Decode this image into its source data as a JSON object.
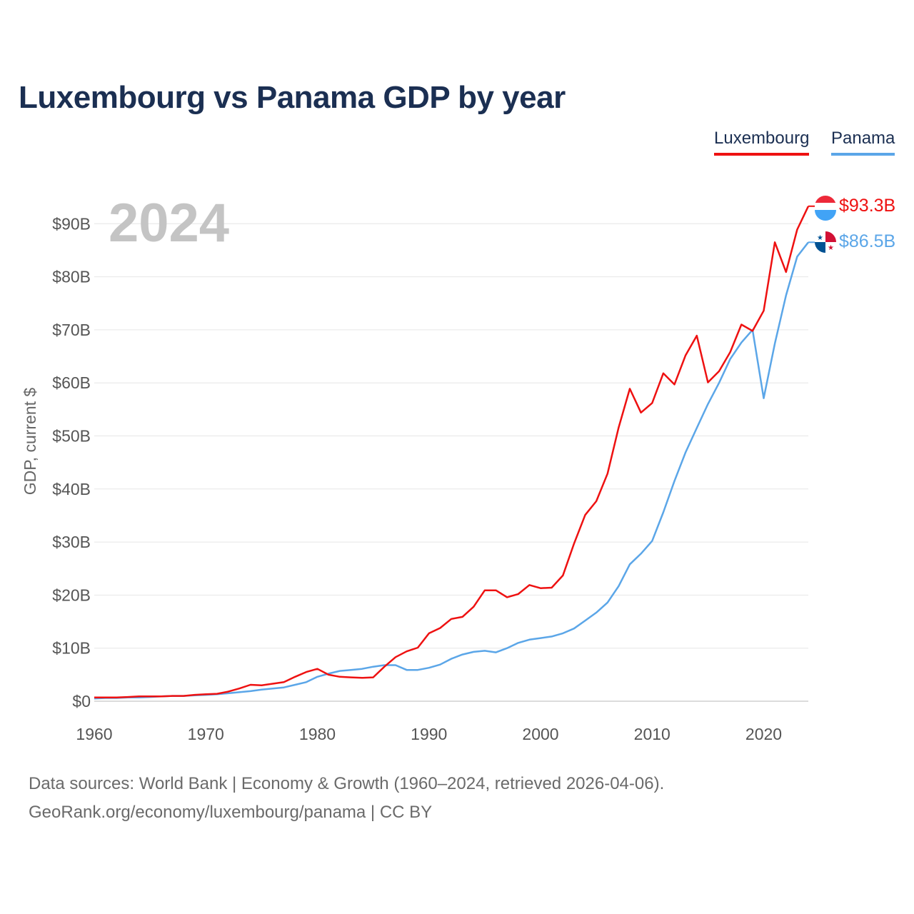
{
  "chart_data": {
    "type": "line",
    "title": "Luxembourg vs Panama GDP by year",
    "ylabel": "GDP, current $",
    "xlabel": "",
    "year_label": "2024",
    "xlim": [
      1960,
      2024
    ],
    "ylim": [
      0,
      95
    ],
    "x_ticks": [
      1960,
      1970,
      1980,
      1990,
      2000,
      2010,
      2020
    ],
    "x_tick_labels": [
      "1960",
      "1970",
      "1980",
      "1990",
      "2000",
      "2010",
      "2020"
    ],
    "y_ticks": [
      0,
      10,
      20,
      30,
      40,
      50,
      60,
      70,
      80,
      90
    ],
    "y_tick_labels": [
      "$0",
      "$10B",
      "$20B",
      "$30B",
      "$40B",
      "$50B",
      "$60B",
      "$70B",
      "$80B",
      "$90B"
    ],
    "grid": true,
    "legend_position": "top-right",
    "x": [
      1960,
      1961,
      1962,
      1963,
      1964,
      1965,
      1966,
      1967,
      1968,
      1969,
      1970,
      1971,
      1972,
      1973,
      1974,
      1975,
      1976,
      1977,
      1978,
      1979,
      1980,
      1981,
      1982,
      1983,
      1984,
      1985,
      1986,
      1987,
      1988,
      1989,
      1990,
      1991,
      1992,
      1993,
      1994,
      1995,
      1996,
      1997,
      1998,
      1999,
      2000,
      2001,
      2002,
      2003,
      2004,
      2005,
      2006,
      2007,
      2008,
      2009,
      2010,
      2011,
      2012,
      2013,
      2014,
      2015,
      2016,
      2017,
      2018,
      2019,
      2020,
      2021,
      2022,
      2023,
      2024
    ],
    "series": [
      {
        "name": "Luxembourg",
        "color": "#ee1111",
        "end_label": "$93.3B",
        "values": [
          0.7,
          0.7,
          0.7,
          0.8,
          0.9,
          0.9,
          0.9,
          1.0,
          1.0,
          1.2,
          1.3,
          1.4,
          1.8,
          2.4,
          3.1,
          3.0,
          3.3,
          3.6,
          4.6,
          5.5,
          6.1,
          5.0,
          4.6,
          4.5,
          4.4,
          4.5,
          6.5,
          8.3,
          9.4,
          10.1,
          12.8,
          13.8,
          15.5,
          15.9,
          17.8,
          20.9,
          20.9,
          19.6,
          20.2,
          21.9,
          21.3,
          21.4,
          23.7,
          29.7,
          35.1,
          37.7,
          42.9,
          51.6,
          58.9,
          54.4,
          56.2,
          61.8,
          59.7,
          65.2,
          68.9,
          60.1,
          62.2,
          65.8,
          71.0,
          69.8,
          73.6,
          86.5,
          80.9,
          88.9,
          93.3
        ]
      },
      {
        "name": "Panama",
        "color": "#5ba6e8",
        "end_label": "$86.5B",
        "values": [
          0.5,
          0.6,
          0.6,
          0.7,
          0.7,
          0.8,
          0.9,
          1.0,
          1.0,
          1.1,
          1.2,
          1.3,
          1.5,
          1.7,
          1.9,
          2.2,
          2.4,
          2.6,
          3.1,
          3.6,
          4.6,
          5.2,
          5.7,
          5.9,
          6.1,
          6.5,
          6.8,
          6.8,
          5.9,
          5.9,
          6.3,
          6.9,
          8.0,
          8.8,
          9.3,
          9.5,
          9.2,
          10.0,
          11.0,
          11.6,
          11.9,
          12.2,
          12.8,
          13.7,
          15.2,
          16.7,
          18.6,
          21.7,
          25.8,
          27.8,
          30.2,
          35.6,
          41.5,
          46.9,
          51.5,
          56.0,
          60.0,
          64.5,
          67.6,
          70.0,
          57.1,
          67.4,
          76.5,
          83.8,
          86.5
        ]
      }
    ]
  },
  "footer": {
    "line1": "Data sources: World Bank | Economy & Growth (1960–2024, retrieved 2026-04-06).",
    "line2": "GeoRank.org/economy/luxembourg/panama | CC BY"
  },
  "flags": {
    "luxembourg": [
      "#ed2939",
      "#ffffff",
      "#41a3f6"
    ],
    "panama": [
      "#ffffff",
      "#d21034",
      "#005293"
    ]
  }
}
